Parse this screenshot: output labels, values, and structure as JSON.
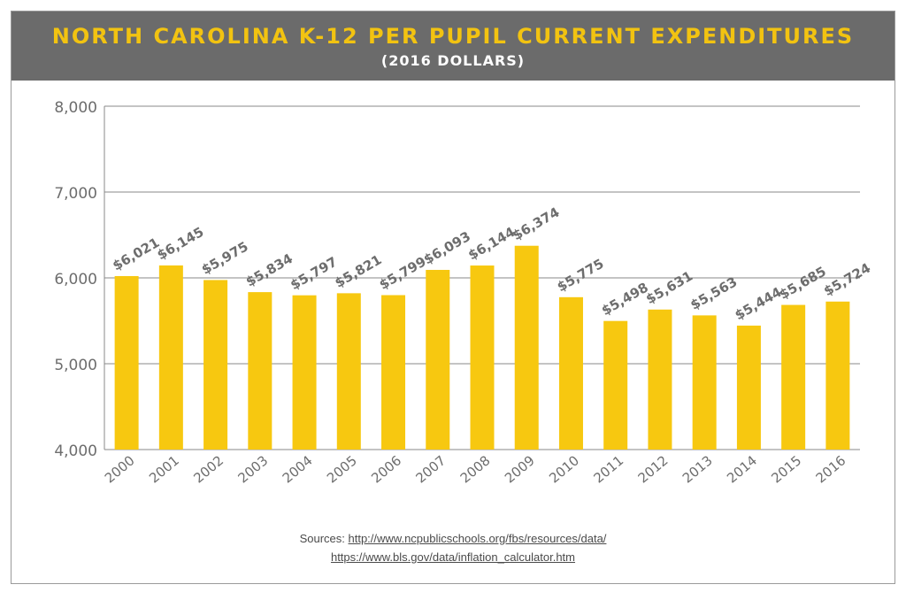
{
  "header": {
    "title": "NORTH CAROLINA K-12 PER PUPIL CURRENT EXPENDITURES",
    "subtitle": "(2016 DOLLARS)"
  },
  "colors": {
    "bar": "#f7c810",
    "header_bg": "#6b6b6b",
    "title": "#f2c311",
    "label": "#6d6d6d",
    "grid": "#888888"
  },
  "chart_data": {
    "type": "bar",
    "title": "NORTH CAROLINA K-12 PER PUPIL CURRENT EXPENDITURES",
    "subtitle": "(2016 DOLLARS)",
    "xlabel": "",
    "ylabel": "",
    "categories": [
      "2000",
      "2001",
      "2002",
      "2003",
      "2004",
      "2005",
      "2006",
      "2007",
      "2008",
      "2009",
      "2010",
      "2011",
      "2012",
      "2013",
      "2014",
      "2015",
      "2016"
    ],
    "values": [
      6021,
      6145,
      5975,
      5834,
      5797,
      5821,
      5799,
      6093,
      6144,
      6374,
      5775,
      5498,
      5631,
      5563,
      5444,
      5685,
      5724
    ],
    "data_labels": [
      "$6,021",
      "$6,145",
      "$5,975",
      "$5,834",
      "$5,797",
      "$5,821",
      "$5,799",
      "$6,093",
      "$6,144",
      "$6,374",
      "$5,775",
      "$5,498",
      "$5,631",
      "$5,563",
      "$5,444",
      "$5,685",
      "$5,724"
    ],
    "ylim": [
      4000,
      8000
    ],
    "yticks": [
      4000,
      5000,
      6000,
      7000,
      8000
    ],
    "ytick_labels": [
      "4,000",
      "5,000",
      "6,000",
      "7,000",
      "8,000"
    ],
    "grid": true,
    "legend": "none"
  },
  "sources": {
    "prefix": "Sources: ",
    "link1": "http://www.ncpublicschools.org/fbs/resources/data/",
    "link2": "https://www.bls.gov/data/inflation_calculator.htm"
  }
}
